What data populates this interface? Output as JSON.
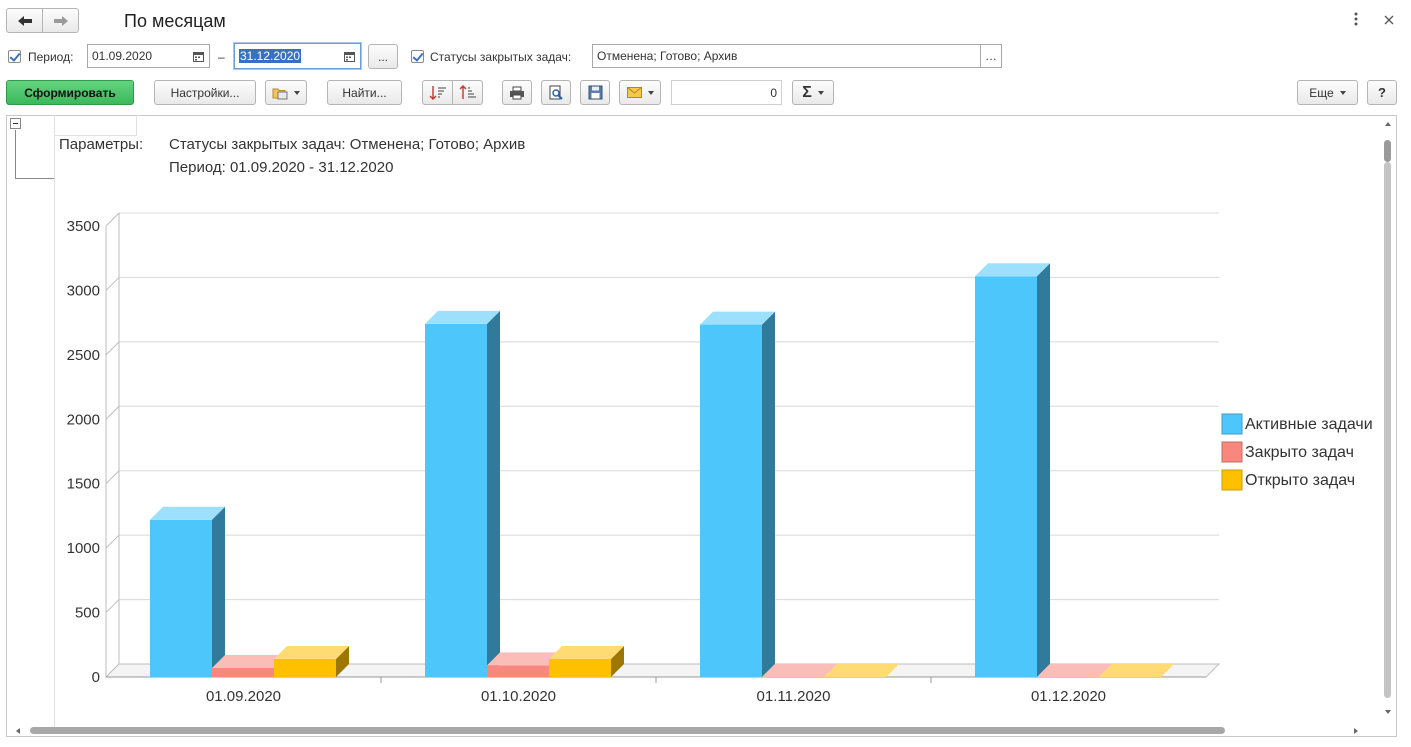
{
  "window": {
    "title": "По месяцам"
  },
  "filters": {
    "period_label": "Период:",
    "date_from": "01.09.2020",
    "dash": "–",
    "date_to": "31.12.2020",
    "more_label": "...",
    "statuses_label": "Статусы закрытых задач:",
    "statuses_value": "Отменена; Готово; Архив"
  },
  "toolbar": {
    "generate_label": "Сформировать",
    "settings_label": "Настройки...",
    "find_label": "Найти...",
    "sum_value": "0",
    "more_label": "Еще",
    "help_label": "?"
  },
  "report": {
    "params_label": "Параметры:",
    "params_line1": "Статусы закрытых задач: Отменена; Готово; Архив",
    "params_line2": "Период: 01.09.2020 - 31.12.2020"
  },
  "chart_data": {
    "type": "bar",
    "categories": [
      "01.09.2020",
      "01.10.2020",
      "01.11.2020",
      "01.12.2020"
    ],
    "series": [
      {
        "name": "Активные задачи",
        "values": [
          1220,
          2740,
          2735,
          3110
        ],
        "color": "#4dc6fb"
      },
      {
        "name": "Закрыто задач",
        "values": [
          70,
          90,
          0,
          0
        ],
        "color": "#f8877d"
      },
      {
        "name": "Открыто задач",
        "values": [
          140,
          140,
          0,
          0
        ],
        "color": "#ffc000"
      }
    ],
    "ylim": [
      0,
      3500
    ],
    "yticks": [
      0,
      500,
      1000,
      1500,
      2000,
      2500,
      3000,
      3500
    ],
    "grid": true,
    "legend": "right",
    "style": "3d"
  }
}
